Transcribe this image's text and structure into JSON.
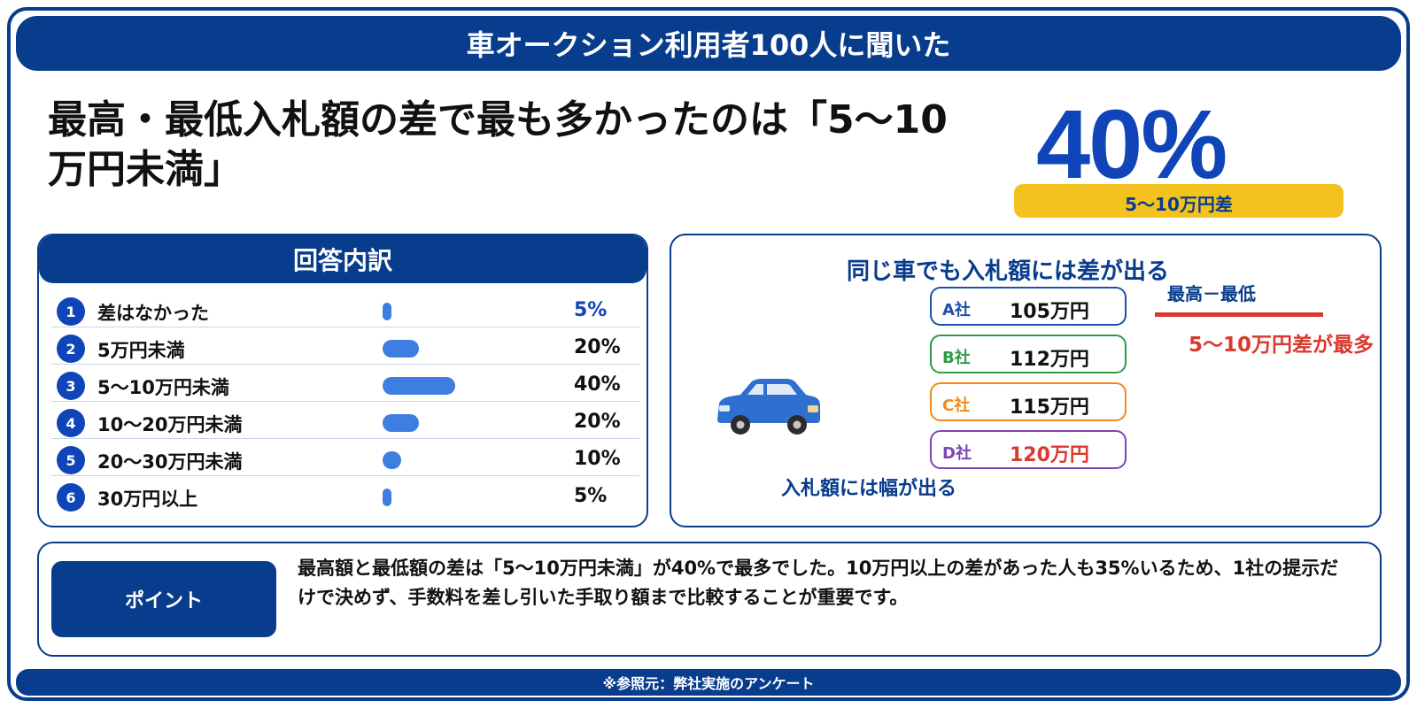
{
  "banner": {
    "title": "車オークション利用者100人に聞いた"
  },
  "headline": "最高・最低入札額の差で最も多かったのは「5〜10万円未満」",
  "highlight": {
    "value": "40%",
    "caption": "5〜10万円差"
  },
  "breakdown": {
    "title": "回答内訳",
    "rows": [
      {
        "num": "1",
        "label": "差はなかった",
        "pct": "5%",
        "value": 5
      },
      {
        "num": "2",
        "label": "5万円未満",
        "pct": "20%",
        "value": 20
      },
      {
        "num": "3",
        "label": "5〜10万円未満",
        "pct": "40%",
        "value": 40
      },
      {
        "num": "4",
        "label": "10〜20万円未満",
        "pct": "20%",
        "value": 20
      },
      {
        "num": "5",
        "label": "20〜30万円未満",
        "pct": "10%",
        "value": 10
      },
      {
        "num": "6",
        "label": "30万円以上",
        "pct": "5%",
        "value": 5
      }
    ]
  },
  "comparison": {
    "title": "同じ車でも入札額には差が出る",
    "car_caption": "入札額には幅が出る",
    "bids": [
      {
        "company": "A社",
        "amount": "105万円",
        "color": "#1f4fa8",
        "amount_color": "#111111"
      },
      {
        "company": "B社",
        "amount": "112万円",
        "color": "#2e9a48",
        "amount_color": "#111111"
      },
      {
        "company": "C社",
        "amount": "115万円",
        "color": "#f08a1c",
        "amount_color": "#111111"
      },
      {
        "company": "D社",
        "amount": "120万円",
        "color": "#7b46b8",
        "amount_color": "#d93a2f"
      }
    ],
    "diff_label": "最高－最低",
    "diff_note": "5〜10万円差が最多"
  },
  "point": {
    "label": "ポイント",
    "text": "最高額と最低額の差は「5〜10万円未満」が40%で最多でした。10万円以上の差があった人も35%いるため、1社の提示だけで決めず、手数料を差し引いた手取り額まで比較することが重要です。"
  },
  "footer": "※参照元：弊社実施のアンケート",
  "colors": {
    "navy": "#083c8c",
    "blue": "#0f45b8",
    "bar": "#3d7ee0",
    "yellow": "#f3c21f",
    "red": "#d93a2f"
  }
}
